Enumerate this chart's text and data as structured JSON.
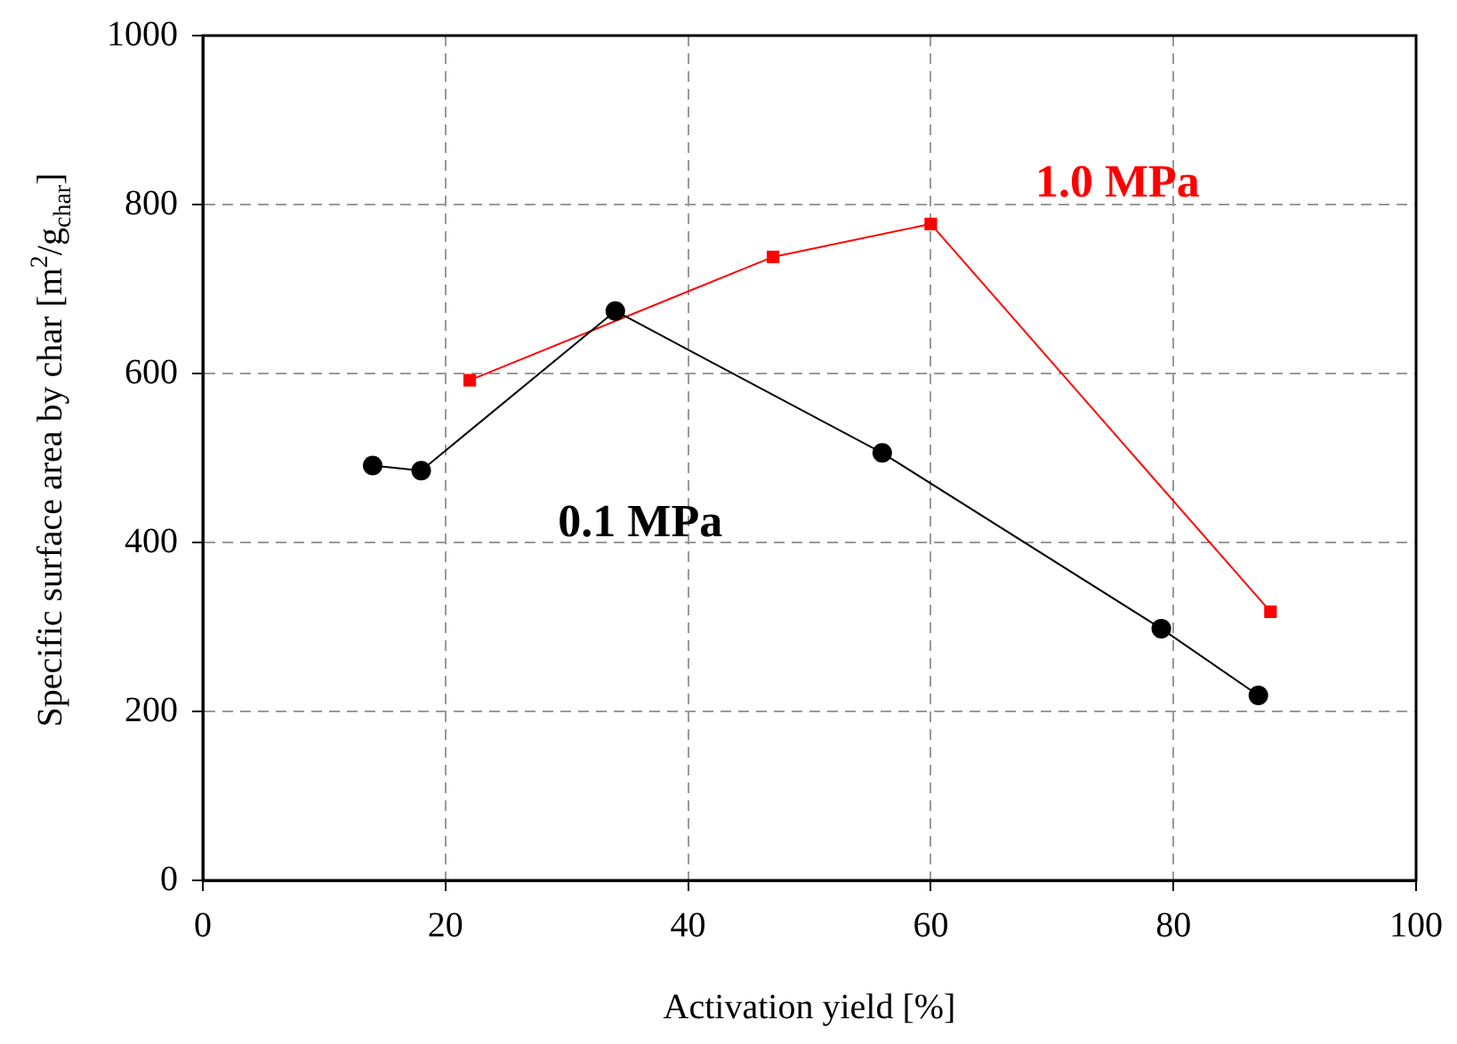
{
  "chart_data": {
    "type": "line",
    "xlabel": "Activation yield [%]",
    "ylabel": "Specific surface area by char [m$^{2}$/g$_{char}$]",
    "xlim": [
      0,
      100
    ],
    "xticks": [
      0,
      20,
      40,
      60,
      80,
      100
    ],
    "ylim": [
      0,
      1000
    ],
    "yticks": [
      0,
      200,
      400,
      600,
      800,
      1000
    ],
    "grid": true,
    "legend": false,
    "series": [
      {
        "name": "0.1 MPa",
        "color": "#000000",
        "marker": "circle",
        "x": [
          14,
          18,
          34,
          56,
          79,
          87
        ],
        "values": [
          491,
          485,
          674,
          506,
          298,
          219
        ]
      },
      {
        "name": "1.0 MPa",
        "color": "#ff0000",
        "marker": "square",
        "x": [
          22,
          47,
          60,
          88
        ],
        "values": [
          592,
          738,
          777,
          318
        ]
      }
    ]
  }
}
